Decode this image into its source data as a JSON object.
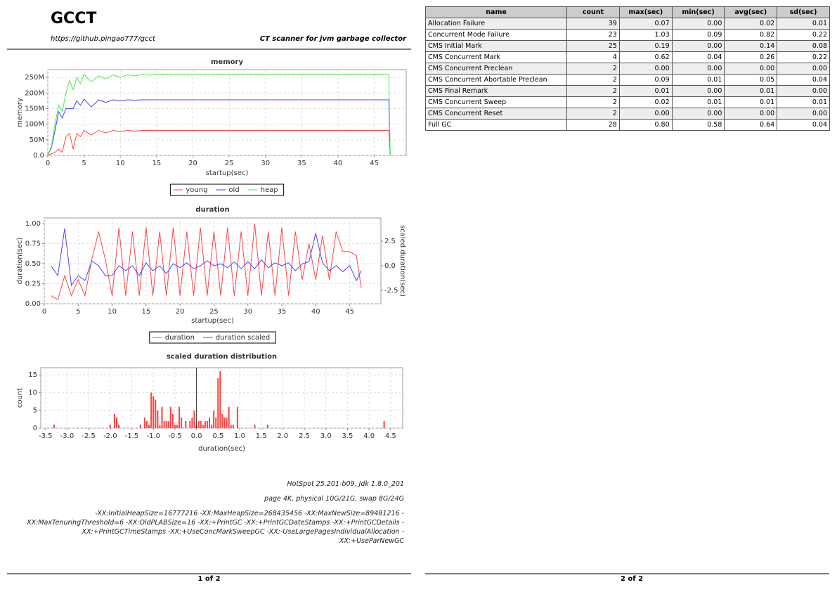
{
  "header": {
    "title": "GCCT",
    "url": "https://github.pingao777/gcct",
    "subtitle": "CT scanner for jvm garbage collector"
  },
  "chart_data": [
    {
      "type": "line",
      "title": "memory",
      "x_label": "startup(sec)",
      "y_label": "memory",
      "grid": true,
      "xlim": [
        0,
        49.4
      ],
      "xticks": [
        0,
        5,
        10,
        15,
        20,
        25,
        30,
        35,
        40,
        45
      ],
      "ylim": [
        0,
        275
      ],
      "yticks": [
        {
          "value": 0,
          "label": "0.0"
        },
        {
          "value": 50,
          "label": "50M"
        },
        {
          "value": 100,
          "label": "100M"
        },
        {
          "value": 150,
          "label": "150M"
        },
        {
          "value": 200,
          "label": "200M"
        },
        {
          "value": 250,
          "label": "250M"
        }
      ],
      "x": [
        0,
        0.5,
        1,
        1.5,
        2,
        2.5,
        3,
        3.5,
        4,
        4.5,
        5,
        6,
        7,
        8,
        9,
        10,
        11,
        12,
        13,
        14,
        15,
        20,
        25,
        30,
        35,
        40,
        45,
        47,
        47.2
      ],
      "series": [
        {
          "name": "young",
          "color": "#f44",
          "values": [
            0,
            5,
            10,
            20,
            10,
            60,
            70,
            20,
            70,
            60,
            80,
            65,
            80,
            72,
            80,
            76,
            80,
            78,
            80,
            80,
            80,
            80,
            80,
            80,
            80,
            80,
            80,
            80,
            0
          ]
        },
        {
          "name": "old",
          "color": "#44f",
          "values": [
            0,
            25,
            80,
            140,
            120,
            150,
            150,
            150,
            175,
            160,
            180,
            155,
            178,
            170,
            178,
            175,
            178,
            177,
            178,
            178,
            178,
            178,
            178,
            178,
            178,
            178,
            178,
            178,
            0
          ]
        },
        {
          "name": "heap",
          "color": "#4e4",
          "values": [
            0,
            30,
            100,
            160,
            140,
            200,
            240,
            210,
            250,
            230,
            260,
            235,
            255,
            245,
            258,
            250,
            258,
            255,
            260,
            257,
            260,
            259,
            260,
            260,
            260,
            260,
            260,
            260,
            0
          ]
        }
      ]
    },
    {
      "type": "line",
      "title": "duration",
      "x_label": "startup(sec)",
      "y_label": "duration(sec)",
      "y2_label": "scaled duration(sec)",
      "grid": true,
      "xlim": [
        0,
        49.6
      ],
      "xticks": [
        0,
        5,
        10,
        15,
        20,
        25,
        30,
        35,
        40,
        45
      ],
      "ylim": [
        0,
        1.07
      ],
      "yticks": [
        {
          "value": 0,
          "label": "0.00"
        },
        0.25,
        {
          "value": 0.5,
          "label": "0.50"
        },
        0.75,
        {
          "value": 1,
          "label": "1.00"
        }
      ],
      "y2lim": [
        -3.86,
        4.86
      ],
      "y2ticks": [
        -2.5,
        {
          "value": 0,
          "label": "0.0"
        },
        2.5
      ],
      "x": [
        1,
        2,
        3,
        4,
        5,
        6,
        7,
        8,
        9,
        10,
        11,
        12,
        13,
        14,
        15,
        16,
        17,
        18,
        19,
        20,
        21,
        22,
        23,
        24,
        25,
        26,
        27,
        28,
        29,
        30,
        31,
        32,
        33,
        34,
        35,
        36,
        37,
        38,
        39,
        40,
        41,
        42,
        43,
        44,
        45,
        46,
        46.7
      ],
      "series": [
        {
          "name": "duration",
          "color": "#f44",
          "values": [
            0.1,
            0.05,
            0.35,
            0.1,
            0.3,
            0.1,
            0.55,
            0.9,
            0.55,
            0.1,
            0.95,
            0.1,
            0.9,
            0.1,
            0.95,
            0.1,
            0.9,
            0.1,
            0.95,
            0.1,
            0.9,
            0.1,
            0.95,
            0.1,
            0.9,
            0.1,
            0.95,
            0.1,
            0.9,
            0.1,
            1.0,
            0.1,
            0.9,
            0.1,
            0.95,
            0.1,
            0.9,
            0.3,
            0.75,
            0.3,
            0.85,
            0.3,
            0.9,
            0.65,
            0.65,
            0.6,
            0.2
          ]
        },
        {
          "name": "duration scaled",
          "color": "#44f",
          "axis": "y2",
          "values": [
            0,
            -1,
            3.8,
            -2,
            -1,
            -1.5,
            0.5,
            0,
            -1,
            -1,
            0,
            -0.5,
            0,
            -1,
            0.3,
            -0.5,
            0,
            -0.8,
            0.2,
            -0.2,
            0.3,
            -0.3,
            0,
            0.5,
            0,
            0.2,
            -0.2,
            0.4,
            -0.3,
            0.4,
            -0.3,
            0.6,
            -0.2,
            0.3,
            0,
            0.3,
            -0.5,
            0.2,
            0.4,
            3.3,
            0.3,
            -0.5,
            0,
            -0.6,
            0,
            -1.5,
            -0.5
          ]
        }
      ]
    },
    {
      "type": "bar",
      "title": "scaled duration distribution",
      "x_label": "duration(sec)",
      "y_label": "count",
      "grid": true,
      "color": "#f44",
      "xlim": [
        -3.61,
        4.78
      ],
      "xticks": [
        -3.5,
        {
          "value": -3,
          "label": "-3.0"
        },
        -2.5,
        {
          "value": -2,
          "label": "-2.0"
        },
        -1.5,
        {
          "value": -1,
          "label": "-1.0"
        },
        -0.5,
        {
          "value": 0,
          "label": "0.0"
        },
        0.5,
        {
          "value": 1,
          "label": "1.0"
        },
        1.5,
        {
          "value": 2,
          "label": "2.0"
        },
        2.5,
        {
          "value": 3,
          "label": "3.0"
        },
        3.5,
        {
          "value": 4,
          "label": "4.0"
        },
        4.5
      ],
      "ylim": [
        0,
        17
      ],
      "yticks": [
        0,
        5,
        10,
        15
      ],
      "x": [
        -3.3,
        -2.0,
        -1.9,
        -1.85,
        -1.8,
        -1.3,
        -1.2,
        -1.15,
        -1.1,
        -1.05,
        -1.0,
        -0.95,
        -0.9,
        -0.85,
        -0.8,
        -0.75,
        -0.7,
        -0.65,
        -0.6,
        -0.55,
        -0.5,
        -0.45,
        -0.4,
        -0.35,
        -0.25,
        -0.15,
        -0.1,
        -0.05,
        0.0,
        0.05,
        0.1,
        0.15,
        0.2,
        0.25,
        0.3,
        0.35,
        0.4,
        0.45,
        0.5,
        0.55,
        0.6,
        0.65,
        0.7,
        0.75,
        0.8,
        0.85,
        0.95,
        1.35,
        1.65,
        4.35
      ],
      "values": [
        1,
        1,
        4,
        3,
        1,
        1,
        3,
        2,
        1,
        10,
        9,
        8,
        5,
        1,
        6,
        2,
        2,
        2,
        6,
        4,
        1,
        1,
        6,
        3,
        2,
        2,
        3,
        5,
        1,
        2,
        2,
        1,
        2,
        2,
        3,
        1,
        5,
        3,
        14,
        16,
        4,
        3,
        3,
        6,
        1,
        1,
        6,
        1,
        1,
        2
      ]
    }
  ],
  "environment": {
    "lines": [
      "HotSpot 25.201-b09, Jdk 1.8.0_201",
      "page 4K, physical 10G/21G, swap 8G/24G"
    ],
    "flags": "-XX:InitialHeapSize=16777216 -XX:MaxHeapSize=268435456 -XX:MaxNewSize=89481216 -XX:MaxTenuringThreshold=6 -XX:OldPLABSize=16 -XX:+PrintGC -XX:+PrintGCDateStamps -XX:+PrintGCDetails -XX:+PrintGCTimeStamps -XX:+UseConcMarkSweepGC -XX:-UseLargePagesIndividualAllocation -XX:+UseParNewGC"
  },
  "table": {
    "columns": [
      "name",
      "count",
      "max(sec)",
      "min(sec)",
      "avg(sec)",
      "sd(sec)"
    ],
    "rows": [
      [
        "Allocation Failure",
        "39",
        "0.07",
        "0.00",
        "0.02",
        "0.01"
      ],
      [
        "Concurrent Mode Failure",
        "23",
        "1.03",
        "0.09",
        "0.82",
        "0.22"
      ],
      [
        "CMS Initial Mark",
        "25",
        "0.19",
        "0.00",
        "0.14",
        "0.08"
      ],
      [
        "CMS Concurrent Mark",
        "4",
        "0.62",
        "0.04",
        "0.26",
        "0.22"
      ],
      [
        "CMS Concurrent Preclean",
        "2",
        "0.00",
        "0.00",
        "0.00",
        "0.00"
      ],
      [
        "CMS Concurrent Abortable Preclean",
        "2",
        "0.09",
        "0.01",
        "0.05",
        "0.04"
      ],
      [
        "CMS Final Remark",
        "2",
        "0.01",
        "0.00",
        "0.01",
        "0.00"
      ],
      [
        "CMS Concurrent Sweep",
        "2",
        "0.02",
        "0.01",
        "0.01",
        "0.01"
      ],
      [
        "CMS Concurrent Reset",
        "2",
        "0.00",
        "0.00",
        "0.00",
        "0.00"
      ],
      [
        "Full GC",
        "28",
        "0.80",
        "0.58",
        "0.64",
        "0.04"
      ]
    ]
  },
  "footer": {
    "pages": [
      "1 of 2",
      "2 of 2"
    ]
  }
}
